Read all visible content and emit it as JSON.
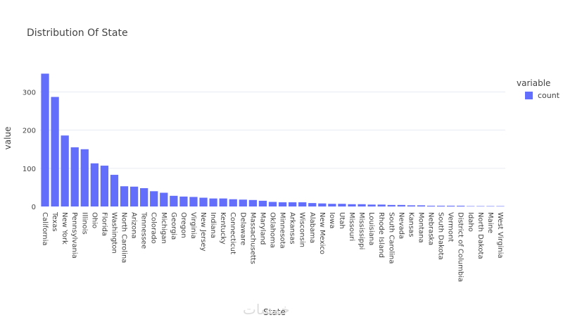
{
  "chart_data": {
    "type": "bar",
    "title": "Distribution Of State",
    "xlabel": "State",
    "ylabel": "value",
    "ylim": [
      0,
      360
    ],
    "yticks": [
      0,
      100,
      200,
      300
    ],
    "grid": true,
    "legend_placement": "top-right",
    "legend_title": "variable",
    "categories": [
      "California",
      "Texas",
      "New York",
      "Pennsylvania",
      "Illinois",
      "Ohio",
      "Florida",
      "Washington",
      "North Carolina",
      "Arizona",
      "Tennessee",
      "Colorado",
      "Michigan",
      "Georgia",
      "Oregon",
      "Virginia",
      "New Jersey",
      "Indiana",
      "Kentucky",
      "Connecticut",
      "Delaware",
      "Massachusetts",
      "Maryland",
      "Oklahoma",
      "Minnesota",
      "Arkansas",
      "Wisconsin",
      "Alabama",
      "New Mexico",
      "Iowa",
      "Utah",
      "Missouri",
      "Mississippi",
      "Louisiana",
      "Rhode Island",
      "South Carolina",
      "Nevada",
      "Kansas",
      "Montana",
      "Nebraska",
      "South Dakota",
      "Vermont",
      "District of Columbia",
      "Idaho",
      "North Dakota",
      "Maine",
      "West Virginia"
    ],
    "series": [
      {
        "name": "count",
        "color": "#636efa",
        "values": [
          348,
          287,
          186,
          155,
          150,
          113,
          107,
          83,
          53,
          52,
          48,
          40,
          36,
          28,
          26,
          25,
          23,
          21,
          21,
          19,
          18,
          17,
          15,
          12,
          11,
          11,
          11,
          9,
          8,
          7,
          7,
          6,
          6,
          5,
          5,
          4,
          4,
          3,
          3,
          2,
          2,
          2,
          2,
          1,
          1,
          1,
          1
        ]
      }
    ]
  },
  "watermark": "خمسات"
}
